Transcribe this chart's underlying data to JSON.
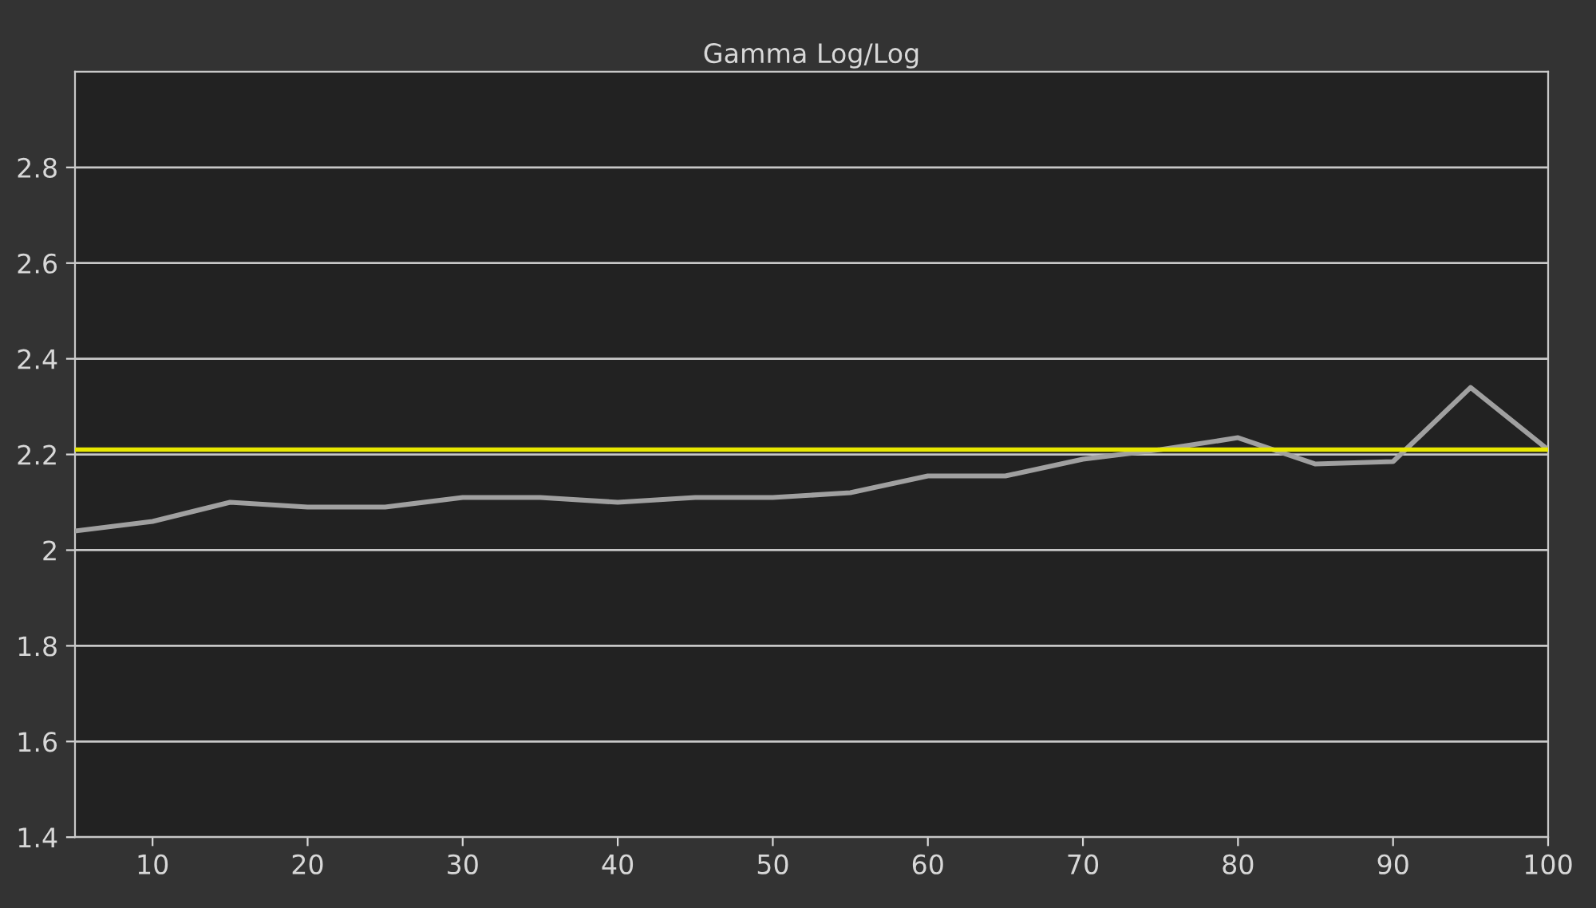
{
  "chart_data": {
    "type": "line",
    "title": "Gamma Log/Log",
    "x": [
      5,
      10,
      15,
      20,
      25,
      30,
      35,
      40,
      45,
      50,
      55,
      60,
      65,
      70,
      75,
      80,
      85,
      90,
      95,
      100
    ],
    "series": [
      {
        "color": "#a0a0a0",
        "values": [
          2.04,
          2.06,
          2.1,
          2.09,
          2.09,
          2.11,
          2.11,
          2.1,
          2.11,
          2.11,
          2.12,
          2.155,
          2.155,
          2.19,
          2.21,
          2.235,
          2.18,
          2.185,
          2.34,
          2.21
        ]
      }
    ],
    "xlim": [
      5,
      100
    ],
    "xticks": [
      10,
      20,
      30,
      40,
      50,
      60,
      70,
      80,
      90,
      100
    ],
    "ylim": [
      1.4,
      3.0
    ],
    "yticks": [
      1.4,
      1.6,
      1.8,
      {
        "value": 2,
        "label": "2"
      },
      2.2,
      2.4,
      2.6,
      2.8
    ],
    "ref_lines": [
      {
        "axis": "y",
        "value": 2.21,
        "color": "#e8e800",
        "line_style": "solid"
      }
    ],
    "grid": "y",
    "marker": "none",
    "line_style": "solid"
  }
}
